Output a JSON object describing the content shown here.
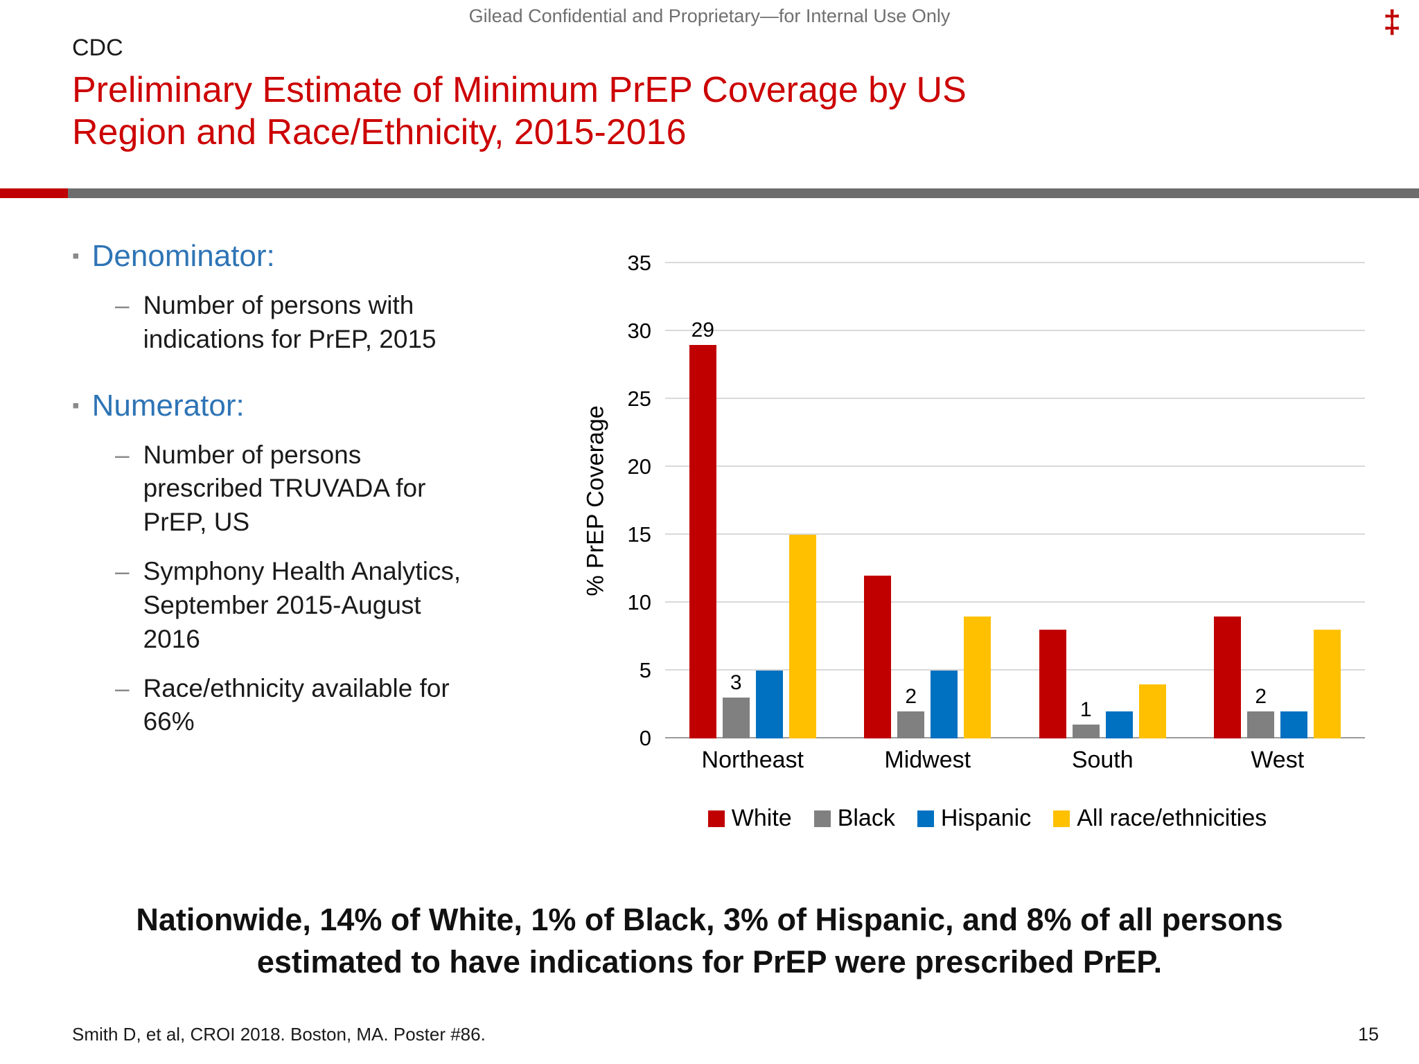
{
  "header": {
    "confidential": "Gilead Confidential and Proprietary—for Internal Use Only",
    "dagger": "‡",
    "kicker": "CDC",
    "title": "Preliminary Estimate of Minimum PrEP Coverage by US Region and Race/Ethnicity, 2015-2016"
  },
  "markers": {
    "square": "▪",
    "dash": "–"
  },
  "bullets": {
    "denominator": {
      "heading": "Denominator:",
      "items": [
        "Number of persons with indications for PrEP, 2015"
      ]
    },
    "numerator": {
      "heading": "Numerator:",
      "items": [
        "Number of persons prescribed TRUVADA for PrEP, US",
        "Symphony Health Analytics, September 2015-August 2016",
        "Race/ethnicity available for 66%"
      ]
    }
  },
  "chart_data": {
    "type": "bar",
    "title": "",
    "xlabel": "",
    "ylabel": "% PrEP Coverage",
    "ylim": [
      0,
      35
    ],
    "ytick_step": 5,
    "grid": true,
    "legend_position": "bottom",
    "categories": [
      "Northeast",
      "Midwest",
      "South",
      "West"
    ],
    "series": [
      {
        "name": "White",
        "color": "#C00000",
        "values": [
          29,
          12,
          8,
          9
        ],
        "labels": [
          "29",
          "",
          "",
          ""
        ]
      },
      {
        "name": "Black",
        "color": "#808080",
        "values": [
          3,
          2,
          1,
          2
        ],
        "labels": [
          "3",
          "2",
          "1",
          "2"
        ]
      },
      {
        "name": "Hispanic",
        "color": "#0070C0",
        "values": [
          5,
          5,
          2,
          2
        ],
        "labels": [
          "",
          "",
          "",
          ""
        ]
      },
      {
        "name": "All race/ethnicities",
        "color": "#FFC000",
        "values": [
          15,
          9,
          4,
          8
        ],
        "labels": [
          "",
          "",
          "",
          ""
        ]
      }
    ]
  },
  "statement": "Nationwide, 14% of White, 1% of Black, 3% of Hispanic, and 8% of all persons estimated to have indications for PrEP were prescribed PrEP.",
  "footer": {
    "citation": "Smith D, et al, CROI 2018. Boston, MA. Poster #86.",
    "page_number": "15"
  },
  "colors": {
    "title_red": "#CC0000",
    "heading_blue": "#2E74B5",
    "divider_red": "#C00000",
    "divider_gray": "#6D6D6D",
    "bar_white_series": "#C00000",
    "bar_black_series": "#808080",
    "bar_hispanic_series": "#0070C0",
    "bar_all_series": "#FFC000"
  }
}
